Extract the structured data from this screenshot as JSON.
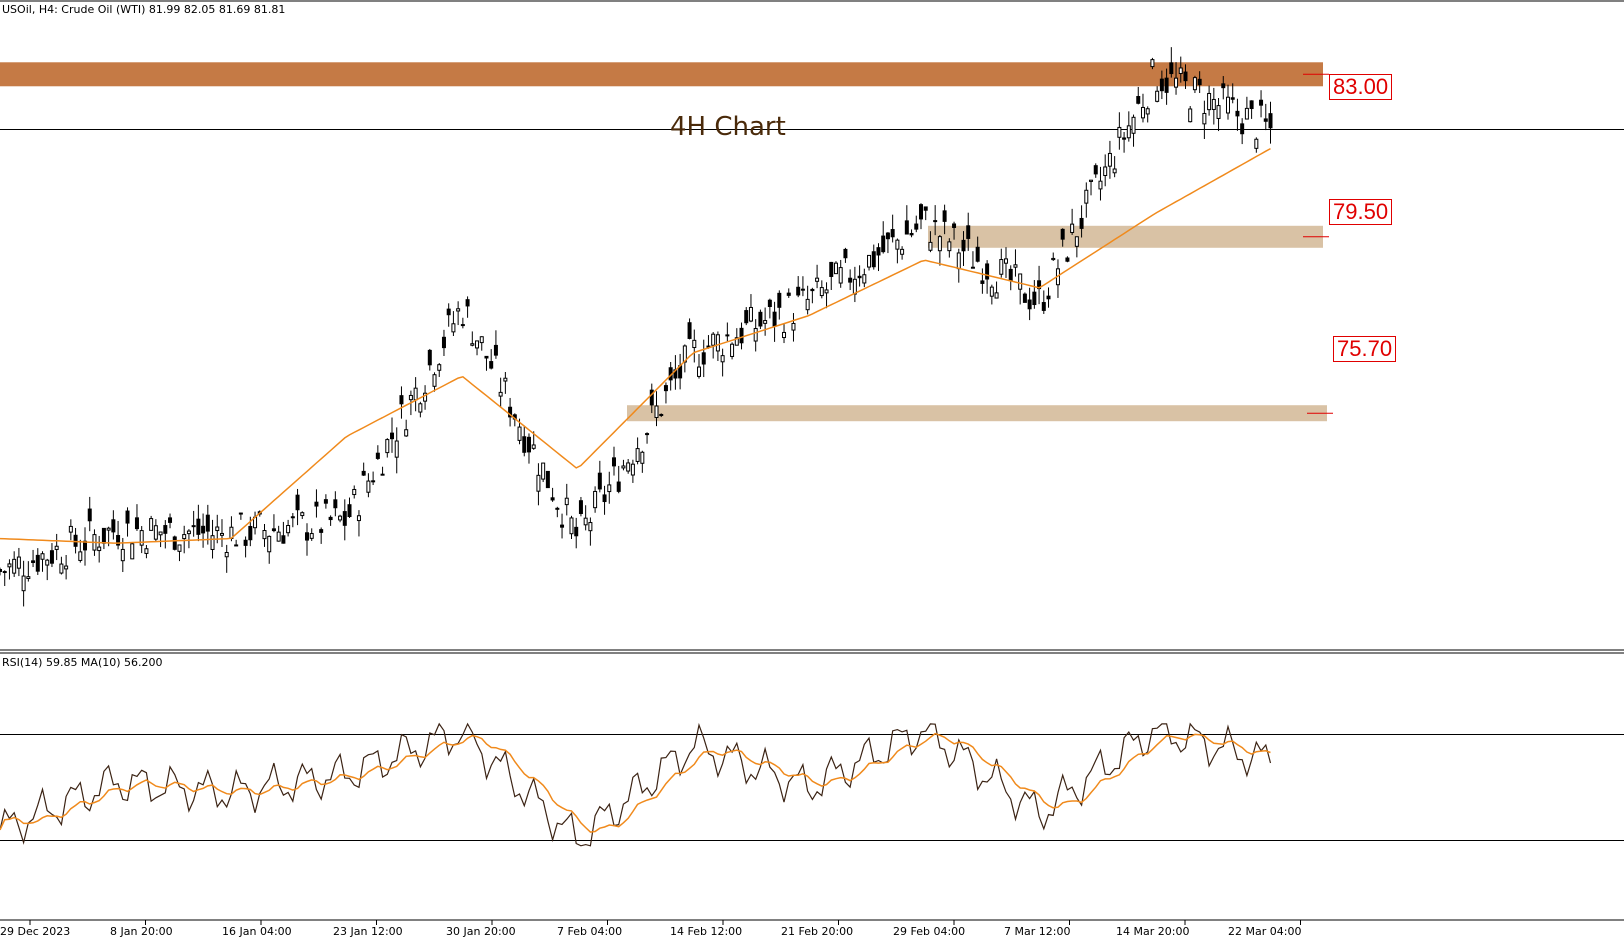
{
  "header": {
    "symbol": "USOil",
    "timeframe": "H4:",
    "instrument": "Crude Oil (WTI)",
    "ohlc": "81.99 82.05 81.69 81.81"
  },
  "watermark": "4H Chart",
  "levels": [
    {
      "label": "83.00",
      "value": 83.0,
      "kind": "resistance",
      "color": "#c57a45"
    },
    {
      "label": "79.50",
      "value": 79.5,
      "kind": "support",
      "color": "#d9c2a5"
    },
    {
      "label": "75.70",
      "value": 75.7,
      "kind": "support",
      "color": "#d9c2a5"
    }
  ],
  "rsi_header": "RSI(14) 59.85 MA(10) 56.200",
  "x_labels": [
    "29 Dec 2023",
    "8 Jan 20:00",
    "16 Jan 04:00",
    "23 Jan 12:00",
    "30 Jan 20:00",
    "7 Feb 04:00",
    "14 Feb 12:00",
    "21 Feb 20:00",
    "29 Feb 04:00",
    "7 Mar 12:00",
    "14 Mar 20:00",
    "22 Mar 04:00"
  ],
  "colors": {
    "candle": "#000000",
    "ma": "#f08a1c",
    "rsi": "#3b2314",
    "rsi_ma": "#f08a1c"
  },
  "chart_data": {
    "type": "line",
    "title": "4H Chart",
    "xlabel": "",
    "ylabel": "",
    "ylim": [
      70.6,
      84.6
    ],
    "categories": [
      "29 Dec 2023",
      "8 Jan 20:00",
      "16 Jan 04:00",
      "23 Jan 12:00",
      "30 Jan 20:00",
      "7 Feb 04:00",
      "14 Feb 12:00",
      "21 Feb 20:00",
      "29 Feb 04:00",
      "7 Mar 12:00",
      "14 Mar 20:00",
      "22 Mar 04:00"
    ],
    "series": [
      {
        "values": [
          72.3,
          73.2,
          73.1,
          73.4,
          78.0,
          73.0,
          77.0,
          78.1,
          79.8,
          78.1,
          83.0,
          81.8
        ]
      },
      {
        "values": [
          73.0,
          72.9,
          73.0,
          75.2,
          76.5,
          74.5,
          77.0,
          77.8,
          79.0,
          78.4,
          80.0,
          81.4
        ]
      }
    ],
    "current_price": 81.81,
    "rsi": {
      "period": 14,
      "ma_period": 10,
      "value": 59.85,
      "ma_value": 56.2,
      "levels": [
        70,
        30
      ],
      "values": [
        34,
        52,
        48,
        55,
        71,
        30,
        66,
        50,
        72,
        40,
        72,
        59.85
      ]
    }
  }
}
